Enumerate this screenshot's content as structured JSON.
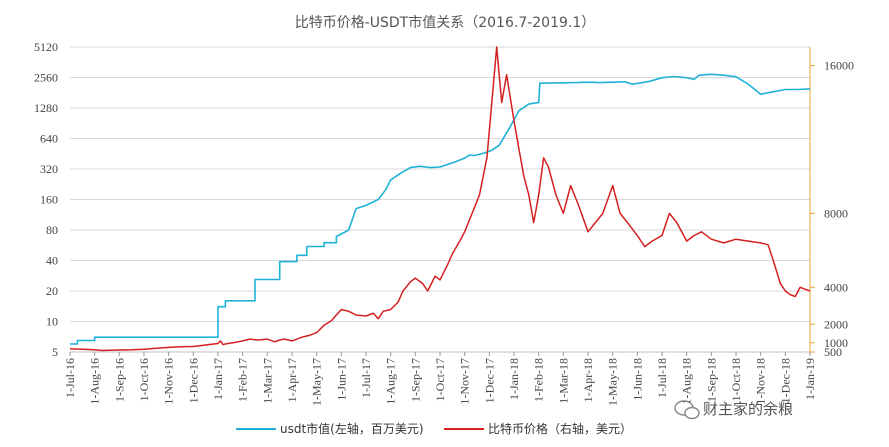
{
  "chart_data": {
    "type": "line",
    "title": "比特币价格-USDT市值关系（2016.7-2019.1）",
    "xlabel": "",
    "x_ticks": [
      "1-Jul-16",
      "1-Aug-16",
      "1-Sep-16",
      "1-Oct-16",
      "1-Nov-16",
      "1-Dec-16",
      "1-Jan-17",
      "1-Feb-17",
      "1-Mar-17",
      "1-Apr-17",
      "1-May-17",
      "1-Jun-17",
      "1-Jul-17",
      "1-Aug-17",
      "1-Sep-17",
      "1-Oct-17",
      "1-Nov-17",
      "1-Dec-17",
      "1-Jan-18",
      "1-Feb-18",
      "1-Mar-18",
      "1-Apr-18",
      "1-May-18",
      "1-Jun-18",
      "1-Jul-18",
      "1-Aug-18",
      "1-Sep-18",
      "1-Oct-18",
      "1-Nov-18",
      "1-Dec-18",
      "1-Jan-19"
    ],
    "y_left": {
      "scale": "log2",
      "range": [
        5,
        5120
      ],
      "ticks": [
        "5",
        "10",
        "20",
        "40",
        "80",
        "160",
        "320",
        "640",
        "1280",
        "2560",
        "5120"
      ]
    },
    "y_right": {
      "scale": "linear",
      "range": [
        500,
        17000
      ],
      "ticks": [
        "500",
        "1000",
        "2000",
        "4000",
        "8000",
        "16000"
      ],
      "tick_values": [
        500,
        1000,
        2000,
        4000,
        8000,
        16000
      ]
    },
    "grid": true,
    "legend_position": "bottom",
    "series": [
      {
        "name": "usdt市值(左轴，百万美元)",
        "axis": "left",
        "color": "#1fb2d8",
        "x_month": [
          0,
          0.3,
          0.3,
          1.0,
          1.0,
          2.0,
          6.0,
          6.0,
          6.3,
          6.3,
          7.5,
          7.5,
          8.5,
          8.5,
          9.2,
          9.2,
          9.6,
          9.6,
          10.3,
          10.3,
          10.8,
          10.8,
          11.3,
          11.6,
          12.0,
          12.5,
          12.8,
          13.0,
          13.4,
          13.8,
          14.2,
          14.6,
          15.0,
          15.6,
          16.0,
          16.2,
          16.4,
          16.8,
          17.1,
          17.4,
          17.8,
          18.2,
          18.6,
          19.0,
          19.05,
          20.0,
          20.5,
          21.0,
          21.5,
          22.0,
          22.5,
          22.8,
          23.5,
          24.0,
          24.5,
          25.0,
          25.3,
          25.5,
          26.0,
          26.5,
          27.0,
          27.5,
          28.0,
          28.5,
          29.0,
          29.5,
          30.0
        ],
        "values": [
          6,
          6,
          6.5,
          6.5,
          7,
          7,
          7,
          14,
          14,
          16,
          16,
          26,
          26,
          39,
          39,
          45,
          45,
          55,
          55,
          60,
          60,
          69,
          80,
          130,
          140,
          160,
          200,
          250,
          290,
          330,
          340,
          330,
          335,
          375,
          410,
          440,
          435,
          460,
          490,
          550,
          800,
          1200,
          1400,
          1450,
          2250,
          2270,
          2280,
          2300,
          2280,
          2300,
          2320,
          2200,
          2350,
          2550,
          2620,
          2550,
          2450,
          2700,
          2750,
          2700,
          2600,
          2200,
          1750,
          1850,
          1950,
          1950,
          1980
        ]
      },
      {
        "name": "比特币价格（右轴，美元）",
        "axis": "right",
        "color": "#d42020",
        "x_month": [
          0,
          0.5,
          1.0,
          1.3,
          1.6,
          2.0,
          2.5,
          3.0,
          3.5,
          4.0,
          4.5,
          5.0,
          5.5,
          6.0,
          6.1,
          6.2,
          6.35,
          6.6,
          7.0,
          7.3,
          7.6,
          8.0,
          8.3,
          8.5,
          8.7,
          9.0,
          9.4,
          9.7,
          10.0,
          10.3,
          10.6,
          10.8,
          11.0,
          11.3,
          11.6,
          12.0,
          12.3,
          12.5,
          12.7,
          13.0,
          13.3,
          13.5,
          13.8,
          14.0,
          14.3,
          14.5,
          14.8,
          15.0,
          15.3,
          15.5,
          15.8,
          16.0,
          16.3,
          16.6,
          16.9,
          17.1,
          17.3,
          17.5,
          17.7,
          18.0,
          18.2,
          18.4,
          18.6,
          18.8,
          19.0,
          19.2,
          19.4,
          19.7,
          20.0,
          20.3,
          20.6,
          21.0,
          21.3,
          21.6,
          22.0,
          22.3,
          22.6,
          23.0,
          23.3,
          23.6,
          24.0,
          24.3,
          24.6,
          25.0,
          25.3,
          25.6,
          26.0,
          26.5,
          27.0,
          27.5,
          28.0,
          28.3,
          28.5,
          28.8,
          29.0,
          29.2,
          29.4,
          29.6,
          29.8,
          30.0
        ],
        "values": [
          680,
          650,
          620,
          580,
          600,
          610,
          620,
          650,
          700,
          750,
          780,
          800,
          880,
          960,
          1100,
          900,
          950,
          1000,
          1100,
          1200,
          1150,
          1200,
          1050,
          1150,
          1200,
          1100,
          1300,
          1400,
          1550,
          1950,
          2200,
          2500,
          2800,
          2700,
          2500,
          2450,
          2600,
          2300,
          2700,
          2800,
          3200,
          3800,
          4300,
          4500,
          4200,
          3800,
          4600,
          4400,
          5200,
          5800,
          6500,
          7000,
          8000,
          9000,
          11000,
          14000,
          17000,
          14000,
          15500,
          13000,
          11500,
          10000,
          9000,
          7500,
          9000,
          11000,
          10500,
          9000,
          8000,
          9500,
          8500,
          7000,
          7500,
          8000,
          9500,
          8000,
          7500,
          6800,
          6200,
          6500,
          6800,
          8000,
          7500,
          6500,
          6800,
          7000,
          6600,
          6400,
          6600,
          6500,
          6400,
          6300,
          5500,
          4200,
          3800,
          3600,
          3500,
          4000,
          3900,
          3800
        ]
      }
    ]
  },
  "watermark": "财主家的余粮",
  "watermark_icon": "wechat-icon"
}
